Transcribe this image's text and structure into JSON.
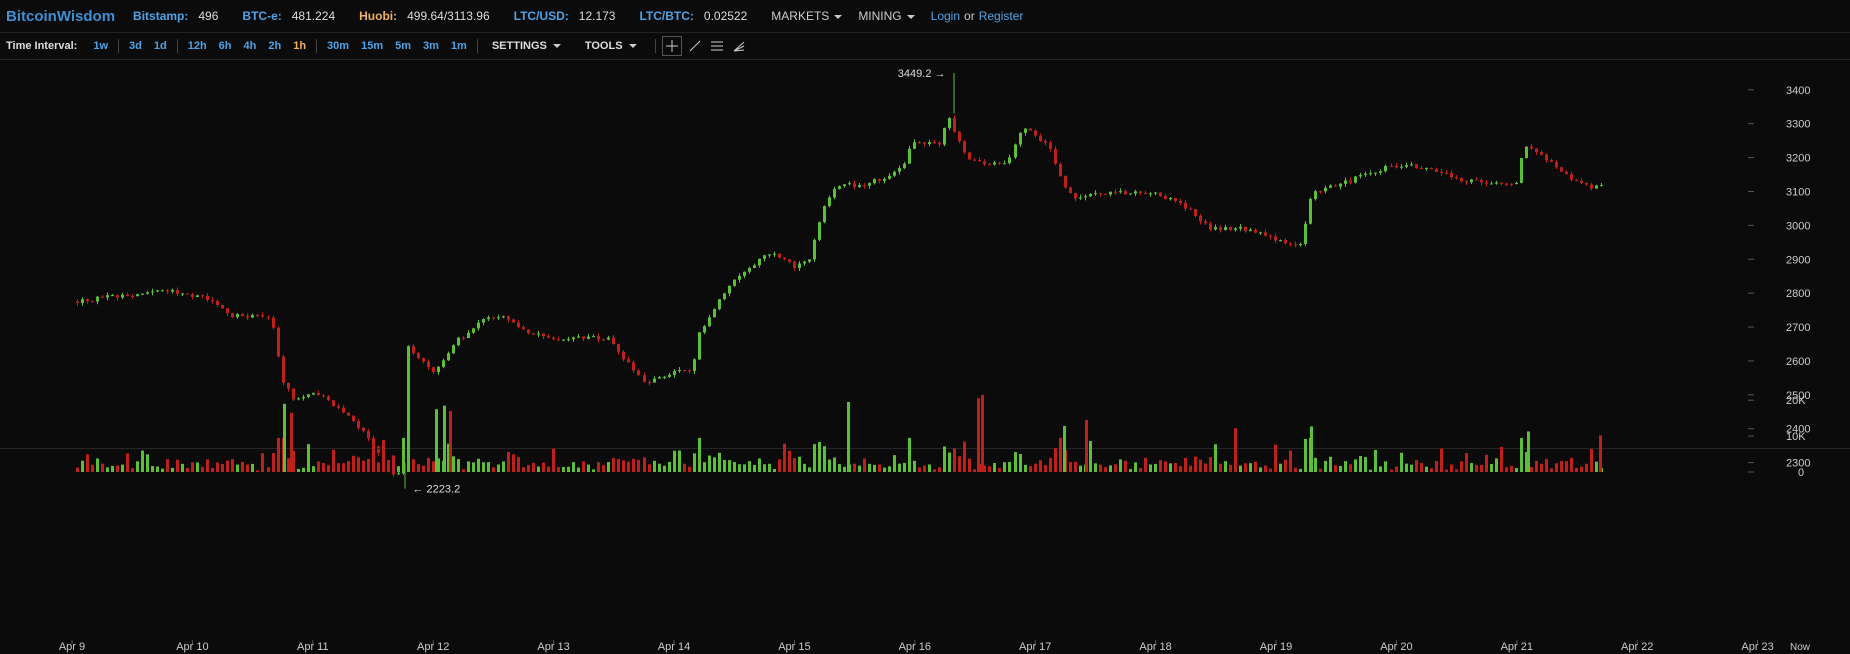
{
  "topbar": {
    "brand": "BitcoinWisdom",
    "markets": [
      {
        "label": "Bitstamp:",
        "value": "496",
        "accent": "#4ea3e6"
      },
      {
        "label": "BTC-e:",
        "value": "481.224",
        "accent": "#4ea3e6"
      },
      {
        "label": "Huobi:",
        "value": "499.64/3113.96",
        "accent": "#f0b060"
      },
      {
        "label": "LTC/USD:",
        "value": "12.173",
        "accent": "#4ea3e6"
      },
      {
        "label": "LTC/BTC:",
        "value": "0.02522",
        "accent": "#4ea3e6"
      }
    ],
    "menus": [
      "MARKETS",
      "MINING"
    ],
    "login": "Login",
    "or": "or",
    "register": "Register"
  },
  "toolbar": {
    "time_interval_label": "Time Interval:",
    "groups": [
      [
        "1w"
      ],
      [
        "3d",
        "1d"
      ],
      [
        "12h",
        "6h",
        "4h",
        "2h",
        "1h"
      ],
      [
        "30m",
        "15m",
        "5m",
        "3m",
        "1m"
      ]
    ],
    "active_interval": "1h",
    "settings_label": "SETTINGS",
    "tools_label": "TOOLS",
    "tool_icons": [
      "crosshair-icon",
      "trendline-icon",
      "horizontal-lines-icon",
      "fan-icon"
    ]
  },
  "colors": {
    "background": "#0b0b0b",
    "up": "#5bbf3a",
    "down": "#c0201c",
    "axis_text": "#cccccc"
  },
  "chart_data": {
    "type": "candlestick",
    "x_tick_labels": [
      "Apr 9",
      "Apr 10",
      "Apr 11",
      "Apr 12",
      "Apr 13",
      "Apr 14",
      "Apr 15",
      "Apr 16",
      "Apr 17",
      "Apr 18",
      "Apr 19",
      "Apr 20",
      "Apr 21",
      "Apr 22",
      "Apr 23"
    ],
    "now_label": "Now",
    "price_ticks": [
      2300,
      2400,
      2500,
      2600,
      2700,
      2800,
      2900,
      3000,
      3100,
      3200,
      3300,
      3400
    ],
    "price_range": [
      2140,
      3520
    ],
    "volume_ticks": [
      "0",
      "10K",
      "20K"
    ],
    "volume_tick_values": [
      0,
      10000,
      20000
    ],
    "volume_range": [
      0,
      22500
    ],
    "annotations": {
      "high": {
        "label": "3449.2 →",
        "value": 3449.2
      },
      "low": {
        "label": "← 2223.2",
        "value": 2223.2
      }
    },
    "price_keypoints": [
      [
        0.0,
        2775
      ],
      [
        0.6,
        2800
      ],
      [
        0.8,
        2810
      ],
      [
        1.0,
        2795
      ],
      [
        1.15,
        2780
      ],
      [
        1.3,
        2735
      ],
      [
        1.5,
        2735
      ],
      [
        1.65,
        2720
      ],
      [
        1.75,
        2540
      ],
      [
        1.85,
        2480
      ],
      [
        2.0,
        2510
      ],
      [
        2.2,
        2465
      ],
      [
        2.4,
        2400
      ],
      [
        2.55,
        2320
      ],
      [
        2.7,
        2250
      ],
      [
        2.75,
        2360
      ],
      [
        2.78,
        2640
      ],
      [
        3.0,
        2570
      ],
      [
        3.2,
        2660
      ],
      [
        3.4,
        2720
      ],
      [
        3.6,
        2735
      ],
      [
        3.8,
        2680
      ],
      [
        4.0,
        2665
      ],
      [
        4.2,
        2670
      ],
      [
        4.45,
        2665
      ],
      [
        4.6,
        2600
      ],
      [
        4.75,
        2530
      ],
      [
        5.0,
        2570
      ],
      [
        5.15,
        2570
      ],
      [
        5.2,
        2680
      ],
      [
        5.4,
        2800
      ],
      [
        5.55,
        2860
      ],
      [
        5.8,
        2920
      ],
      [
        6.0,
        2880
      ],
      [
        6.12,
        2900
      ],
      [
        6.25,
        3060
      ],
      [
        6.35,
        3120
      ],
      [
        6.6,
        3120
      ],
      [
        6.9,
        3170
      ],
      [
        6.98,
        3250
      ],
      [
        7.2,
        3240
      ],
      [
        7.28,
        3330
      ],
      [
        7.35,
        3260
      ],
      [
        7.45,
        3190
      ],
      [
        7.75,
        3180
      ],
      [
        7.9,
        3290
      ],
      [
        8.1,
        3240
      ],
      [
        8.2,
        3140
      ],
      [
        8.3,
        3080
      ],
      [
        8.5,
        3090
      ],
      [
        8.9,
        3100
      ],
      [
        9.2,
        3070
      ],
      [
        9.45,
        2990
      ],
      [
        9.7,
        2990
      ],
      [
        10.2,
        2940
      ],
      [
        10.3,
        3100
      ],
      [
        10.6,
        3130
      ],
      [
        10.9,
        3170
      ],
      [
        11.1,
        3180
      ],
      [
        11.4,
        3150
      ],
      [
        11.6,
        3130
      ],
      [
        12.0,
        3120
      ],
      [
        12.05,
        3230
      ],
      [
        12.2,
        3210
      ],
      [
        12.35,
        3160
      ],
      [
        12.6,
        3110
      ],
      [
        12.7,
        3120
      ]
    ],
    "candle_count": 305,
    "volume_highlights": [
      {
        "x": 1.72,
        "value": 19000,
        "dir": "up"
      },
      {
        "x": 1.78,
        "value": 16500,
        "dir": "down"
      },
      {
        "x": 2.98,
        "value": 17500,
        "dir": "up"
      },
      {
        "x": 3.05,
        "value": 18500,
        "dir": "up"
      },
      {
        "x": 3.1,
        "value": 17000,
        "dir": "down"
      },
      {
        "x": 6.4,
        "value": 19500,
        "dir": "up"
      },
      {
        "x": 7.48,
        "value": 20500,
        "dir": "down"
      },
      {
        "x": 7.52,
        "value": 21500,
        "dir": "down"
      },
      {
        "x": 8.2,
        "value": 12800,
        "dir": "up"
      },
      {
        "x": 8.38,
        "value": 14500,
        "dir": "down"
      },
      {
        "x": 9.62,
        "value": 12200,
        "dir": "down"
      },
      {
        "x": 10.25,
        "value": 12700,
        "dir": "up"
      },
      {
        "x": 12.05,
        "value": 11300,
        "dir": "up"
      },
      {
        "x": 12.65,
        "value": 10200,
        "dir": "down"
      }
    ]
  }
}
